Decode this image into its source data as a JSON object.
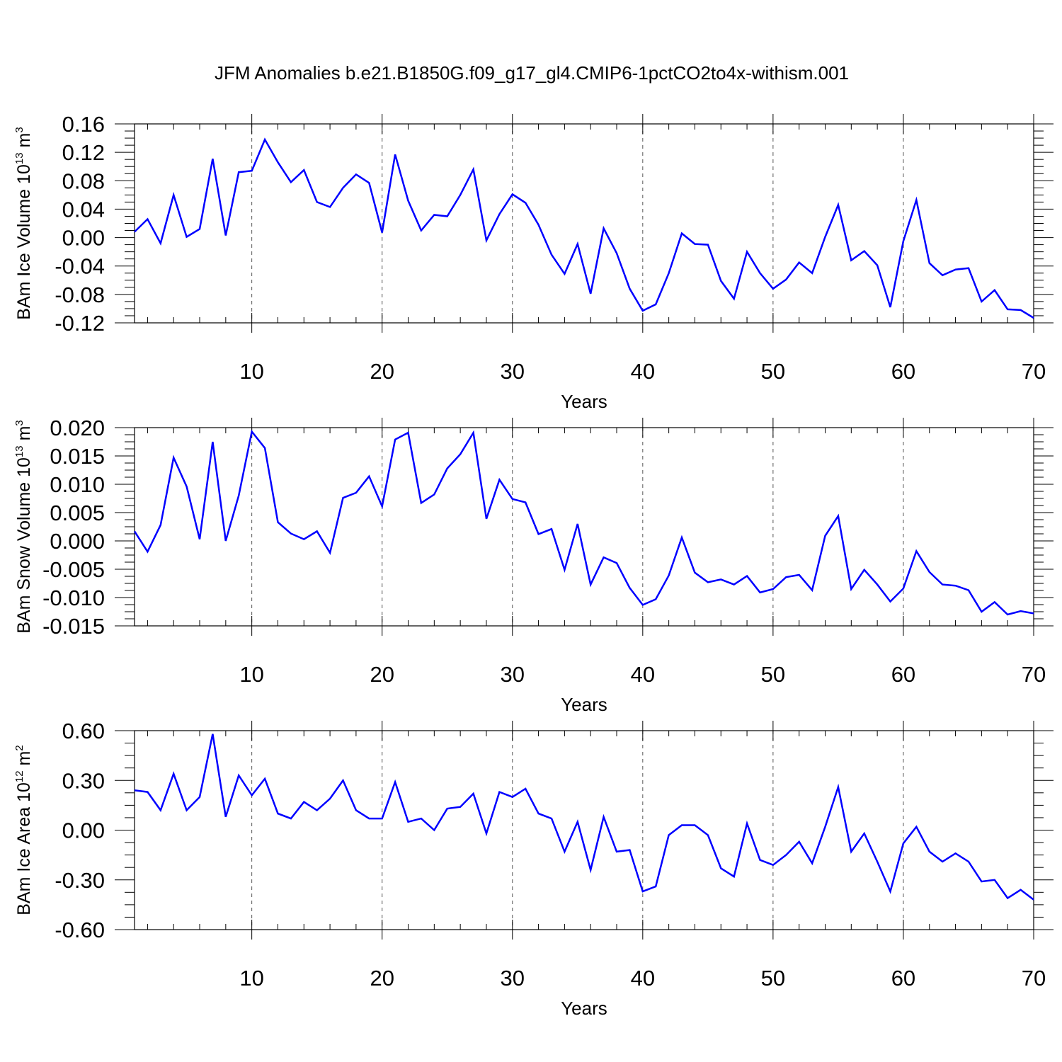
{
  "title": "JFM Anomalies b.e21.B1850G.f09_g17_gl4.CMIP6-1pctCO2to4x-withism.001",
  "line_color": "#0000ff",
  "chart_data": [
    {
      "type": "line",
      "xlabel": "Years",
      "ylabel": "BAm Ice Volume 10",
      "ylabel_exp": "13",
      "ylabel_unit": " m",
      "ylabel_unit_exp": "3",
      "xlim": [
        1,
        70
      ],
      "ylim": [
        -0.12,
        0.16
      ],
      "x_ticks": [
        "10",
        "20",
        "30",
        "40",
        "50",
        "60",
        "70"
      ],
      "y_ticks": [
        "-0.12",
        "-0.08",
        "-0.04",
        "0.00",
        "0.04",
        "0.08",
        "0.12",
        "0.16"
      ],
      "x": [
        1,
        2,
        3,
        4,
        5,
        6,
        7,
        8,
        9,
        10,
        11,
        12,
        13,
        14,
        15,
        16,
        17,
        18,
        19,
        20,
        21,
        22,
        23,
        24,
        25,
        26,
        27,
        28,
        29,
        30,
        31,
        32,
        33,
        34,
        35,
        36,
        37,
        38,
        39,
        40,
        41,
        42,
        43,
        44,
        45,
        46,
        47,
        48,
        49,
        50,
        51,
        52,
        53,
        54,
        55,
        56,
        57,
        58,
        59,
        60,
        61,
        62,
        63,
        64,
        65,
        66,
        67,
        68,
        69,
        70
      ],
      "values": [
        0.008,
        0.026,
        -0.008,
        0.06,
        0.001,
        0.012,
        0.111,
        0.003,
        0.092,
        0.094,
        0.138,
        0.106,
        0.078,
        0.095,
        0.05,
        0.043,
        0.07,
        0.089,
        0.077,
        0.007,
        0.117,
        0.052,
        0.01,
        0.032,
        0.03,
        0.06,
        0.096,
        -0.004,
        0.033,
        0.061,
        0.049,
        0.018,
        -0.024,
        -0.051,
        -0.009,
        -0.079,
        0.013,
        -0.022,
        -0.072,
        -0.103,
        -0.094,
        -0.05,
        0.006,
        -0.009,
        -0.01,
        -0.061,
        -0.086,
        -0.02,
        -0.05,
        -0.072,
        -0.059,
        -0.035,
        -0.05,
        0.001,
        0.046,
        -0.032,
        -0.019,
        -0.039,
        -0.098,
        -0.005,
        0.053,
        -0.036,
        -0.053,
        -0.045,
        -0.043,
        -0.09,
        -0.074,
        -0.101,
        -0.102,
        -0.113
      ]
    },
    {
      "type": "line",
      "xlabel": "Years",
      "ylabel": "BAm Snow Volume 10",
      "ylabel_exp": "13",
      "ylabel_unit": " m",
      "ylabel_unit_exp": "3",
      "xlim": [
        1,
        70
      ],
      "ylim": [
        -0.015,
        0.02
      ],
      "x_ticks": [
        "10",
        "20",
        "30",
        "40",
        "50",
        "60",
        "70"
      ],
      "y_ticks": [
        "-0.015",
        "-0.010",
        "-0.005",
        "0.000",
        "0.005",
        "0.010",
        "0.015",
        "0.020"
      ],
      "x": [
        1,
        2,
        3,
        4,
        5,
        6,
        7,
        8,
        9,
        10,
        11,
        12,
        13,
        14,
        15,
        16,
        17,
        18,
        19,
        20,
        21,
        22,
        23,
        24,
        25,
        26,
        27,
        28,
        29,
        30,
        31,
        32,
        33,
        34,
        35,
        36,
        37,
        38,
        39,
        40,
        41,
        42,
        43,
        44,
        45,
        46,
        47,
        48,
        49,
        50,
        51,
        52,
        53,
        54,
        55,
        56,
        57,
        58,
        59,
        60,
        61,
        62,
        63,
        64,
        65,
        66,
        67,
        68,
        69,
        70
      ],
      "values": [
        0.0017,
        -0.0019,
        0.0028,
        0.0147,
        0.0096,
        0.0003,
        0.0175,
        0.0,
        0.008,
        0.0193,
        0.0164,
        0.0033,
        0.0013,
        0.0003,
        0.0017,
        -0.0021,
        0.0076,
        0.0085,
        0.0114,
        0.0061,
        0.0179,
        0.0191,
        0.0067,
        0.0082,
        0.0128,
        0.0153,
        0.0191,
        0.0039,
        0.0108,
        0.0074,
        0.0068,
        0.0012,
        0.0021,
        -0.0051,
        0.003,
        -0.0077,
        -0.0029,
        -0.0039,
        -0.0083,
        -0.0113,
        -0.0103,
        -0.0061,
        0.0006,
        -0.0056,
        -0.0073,
        -0.0068,
        -0.0077,
        -0.0062,
        -0.0091,
        -0.0085,
        -0.0064,
        -0.006,
        -0.0087,
        0.0009,
        0.0044,
        -0.0085,
        -0.0051,
        -0.0077,
        -0.0107,
        -0.0084,
        -0.0018,
        -0.0055,
        -0.0077,
        -0.0079,
        -0.0087,
        -0.0125,
        -0.0108,
        -0.013,
        -0.0124,
        -0.0128
      ]
    },
    {
      "type": "line",
      "xlabel": "Years",
      "ylabel": "BAm Ice Area 10",
      "ylabel_exp": "12",
      "ylabel_unit": " m",
      "ylabel_unit_exp": "2",
      "xlim": [
        1,
        70
      ],
      "ylim": [
        -0.6,
        0.6
      ],
      "x_ticks": [
        "10",
        "20",
        "30",
        "40",
        "50",
        "60",
        "70"
      ],
      "y_ticks": [
        "-0.60",
        "-0.30",
        "0.00",
        "0.30",
        "0.60"
      ],
      "x": [
        1,
        2,
        3,
        4,
        5,
        6,
        7,
        8,
        9,
        10,
        11,
        12,
        13,
        14,
        15,
        16,
        17,
        18,
        19,
        20,
        21,
        22,
        23,
        24,
        25,
        26,
        27,
        28,
        29,
        30,
        31,
        32,
        33,
        34,
        35,
        36,
        37,
        38,
        39,
        40,
        41,
        42,
        43,
        44,
        45,
        46,
        47,
        48,
        49,
        50,
        51,
        52,
        53,
        54,
        55,
        56,
        57,
        58,
        59,
        60,
        61,
        62,
        63,
        64,
        65,
        66,
        67,
        68,
        69,
        70
      ],
      "values": [
        0.24,
        0.23,
        0.12,
        0.34,
        0.12,
        0.2,
        0.58,
        0.08,
        0.33,
        0.21,
        0.31,
        0.1,
        0.07,
        0.17,
        0.12,
        0.19,
        0.3,
        0.12,
        0.07,
        0.07,
        0.29,
        0.05,
        0.07,
        0.0,
        0.13,
        0.14,
        0.22,
        -0.02,
        0.23,
        0.2,
        0.25,
        0.1,
        0.07,
        -0.13,
        0.05,
        -0.24,
        0.08,
        -0.13,
        -0.12,
        -0.37,
        -0.34,
        -0.03,
        0.03,
        0.03,
        -0.03,
        -0.23,
        -0.28,
        0.04,
        -0.18,
        -0.21,
        -0.15,
        -0.07,
        -0.2,
        0.02,
        0.26,
        -0.13,
        -0.02,
        -0.19,
        -0.37,
        -0.08,
        0.02,
        -0.13,
        -0.19,
        -0.14,
        -0.19,
        -0.31,
        -0.3,
        -0.41,
        -0.36,
        -0.42
      ]
    }
  ]
}
